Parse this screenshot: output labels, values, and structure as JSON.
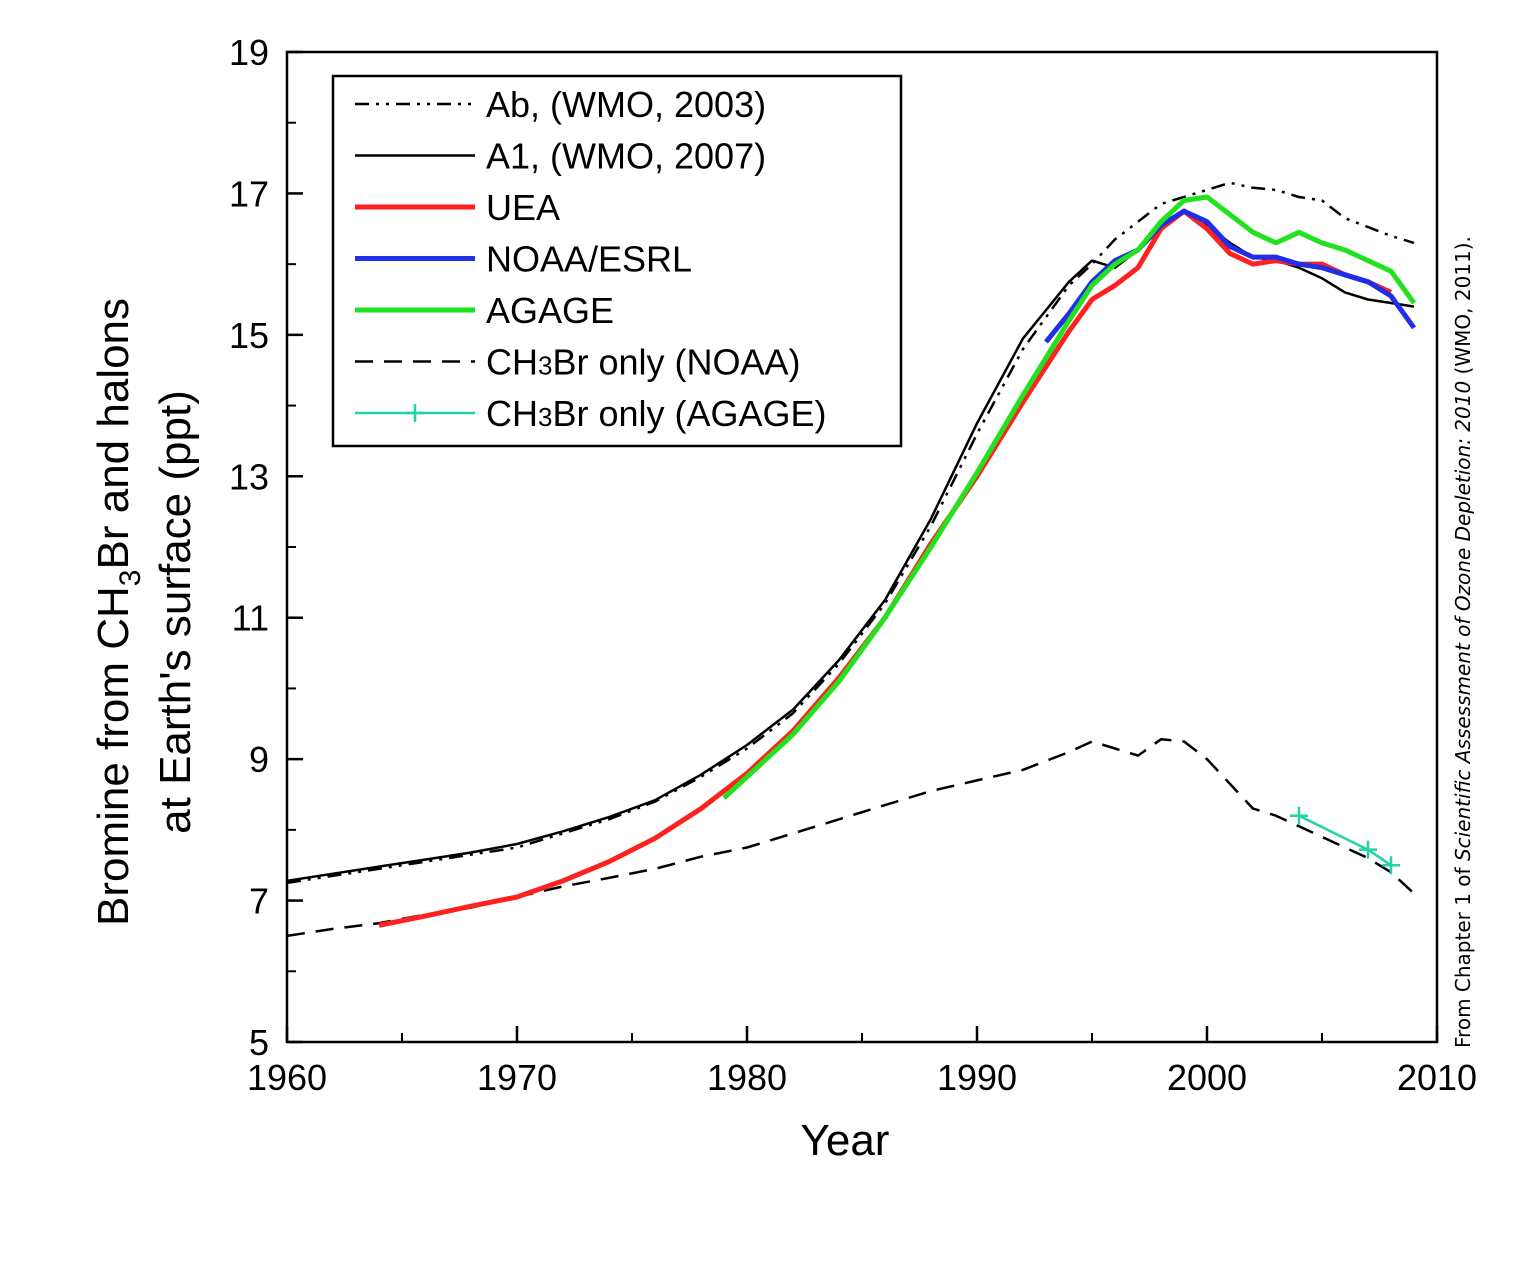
{
  "chart_data": {
    "type": "line",
    "xlabel": "Year",
    "ylabel_line1_prefix": "Bromine from CH",
    "ylabel_line1_sub": "3",
    "ylabel_line1_suffix": "Br and halons",
    "ylabel_line2": "at Earth's surface (ppt)",
    "xlim": [
      1960,
      2010
    ],
    "ylim": [
      5,
      19
    ],
    "xticks": [
      1960,
      1970,
      1980,
      1990,
      2000,
      2010
    ],
    "xticks_minor": [
      1965,
      1975,
      1985,
      1995,
      2005
    ],
    "yticks": [
      5,
      7,
      9,
      11,
      13,
      15,
      17,
      19
    ],
    "yticks_minor": [
      6,
      8,
      10,
      12,
      14,
      16,
      18
    ],
    "grid": false,
    "legend_position": "top-left",
    "credit": {
      "prefix": "From Chapter 1 of ",
      "italic": "Scientific Assessment of Ozone Depletion: 2010",
      "suffix": " (WMO, 2011)."
    },
    "series": [
      {
        "name": "Ab, (WMO, 2003)",
        "legend_prefix": "Ab, (WMO, 2003)",
        "legend_sub": "",
        "legend_suffix": "",
        "color": "#000000",
        "style": "dashdotdot",
        "width": 2.5,
        "x": [
          1960,
          1962,
          1964,
          1966,
          1968,
          1970,
          1972,
          1974,
          1976,
          1978,
          1980,
          1982,
          1984,
          1986,
          1988,
          1990,
          1992,
          1994,
          1995,
          1996,
          1998,
          2000,
          2001,
          2002,
          2003,
          2004,
          2005,
          2006,
          2008,
          2009
        ],
        "y": [
          7.25,
          7.35,
          7.45,
          7.55,
          7.65,
          7.75,
          7.95,
          8.15,
          8.4,
          8.75,
          9.15,
          9.65,
          10.35,
          11.2,
          12.3,
          13.6,
          14.8,
          15.7,
          16.0,
          16.35,
          16.85,
          17.05,
          17.15,
          17.08,
          17.05,
          16.95,
          16.9,
          16.65,
          16.4,
          16.3
        ]
      },
      {
        "name": "A1, (WMO, 2007)",
        "legend_prefix": "A1, (WMO, 2007)",
        "legend_sub": "",
        "legend_suffix": "",
        "color": "#000000",
        "style": "solid",
        "width": 2.5,
        "x": [
          1960,
          1962,
          1964,
          1966,
          1968,
          1970,
          1972,
          1974,
          1976,
          1978,
          1980,
          1982,
          1984,
          1986,
          1988,
          1990,
          1992,
          1994,
          1995,
          1996,
          1997,
          1998,
          1999,
          2000,
          2001,
          2002,
          2003,
          2004,
          2005,
          2006,
          2007,
          2008,
          2009
        ],
        "y": [
          7.28,
          7.38,
          7.48,
          7.58,
          7.68,
          7.8,
          7.98,
          8.18,
          8.42,
          8.78,
          9.2,
          9.7,
          10.4,
          11.25,
          12.4,
          13.75,
          14.95,
          15.75,
          16.05,
          15.95,
          16.2,
          16.5,
          16.75,
          16.55,
          16.3,
          16.1,
          16.05,
          15.95,
          15.8,
          15.6,
          15.5,
          15.45,
          15.4
        ]
      },
      {
        "name": "UEA",
        "legend_prefix": "UEA",
        "legend_sub": "",
        "legend_suffix": "",
        "color": "#ff2020",
        "style": "solid",
        "width": 5,
        "x": [
          1964,
          1966,
          1968,
          1970,
          1972,
          1974,
          1976,
          1978,
          1980,
          1982,
          1984,
          1986,
          1988,
          1990,
          1992,
          1994,
          1995,
          1996,
          1997,
          1998,
          1999,
          2000,
          2001,
          2002,
          2003,
          2004,
          2005,
          2006,
          2007,
          2008
        ],
        "y": [
          6.65,
          6.78,
          6.92,
          7.05,
          7.28,
          7.55,
          7.88,
          8.3,
          8.8,
          9.4,
          10.15,
          11.0,
          12.05,
          13.0,
          14.05,
          15.05,
          15.5,
          15.7,
          15.95,
          16.5,
          16.75,
          16.5,
          16.15,
          16.0,
          16.05,
          16.0,
          16.0,
          15.85,
          15.75,
          15.6
        ]
      },
      {
        "name": "NOAA/ESRL",
        "legend_prefix": "NOAA/ESRL",
        "legend_sub": "",
        "legend_suffix": "",
        "color": "#1f2ee8",
        "style": "solid",
        "width": 5,
        "x": [
          1993,
          1994,
          1995,
          1996,
          1997,
          1998,
          1999,
          2000,
          2001,
          2002,
          2003,
          2004,
          2005,
          2006,
          2007,
          2008,
          2009
        ],
        "y": [
          14.9,
          15.3,
          15.75,
          16.05,
          16.2,
          16.55,
          16.75,
          16.6,
          16.25,
          16.1,
          16.1,
          16.0,
          15.95,
          15.85,
          15.75,
          15.55,
          15.1
        ]
      },
      {
        "name": "AGAGE",
        "legend_prefix": "AGAGE",
        "legend_sub": "",
        "legend_suffix": "",
        "color": "#22e11f",
        "style": "solid",
        "width": 5,
        "x": [
          1979,
          1980,
          1982,
          1984,
          1986,
          1988,
          1990,
          1992,
          1994,
          1995,
          1996,
          1997,
          1998,
          1999,
          2000,
          2001,
          2002,
          2003,
          2004,
          2005,
          2006,
          2007,
          2008,
          2009
        ],
        "y": [
          8.45,
          8.75,
          9.35,
          10.1,
          11.0,
          12.0,
          13.05,
          14.15,
          15.2,
          15.7,
          16.0,
          16.2,
          16.6,
          16.9,
          16.95,
          16.7,
          16.45,
          16.3,
          16.45,
          16.3,
          16.2,
          16.05,
          15.9,
          15.45
        ]
      },
      {
        "name": "CH3Br only (NOAA)",
        "legend_prefix": "CH",
        "legend_sub": "3",
        "legend_suffix": "Br only (NOAA)",
        "color": "#000000",
        "style": "dashed",
        "width": 2.5,
        "x": [
          1960,
          1962,
          1964,
          1966,
          1968,
          1970,
          1972,
          1974,
          1976,
          1978,
          1980,
          1982,
          1984,
          1986,
          1988,
          1990,
          1992,
          1994,
          1995,
          1996,
          1997,
          1998,
          1999,
          2000,
          2001,
          2002,
          2003,
          2004,
          2005,
          2006,
          2007,
          2008,
          2009
        ],
        "y": [
          6.5,
          6.6,
          6.68,
          6.8,
          6.9,
          7.05,
          7.2,
          7.32,
          7.45,
          7.62,
          7.75,
          7.95,
          8.15,
          8.35,
          8.55,
          8.7,
          8.85,
          9.1,
          9.25,
          9.15,
          9.05,
          9.28,
          9.25,
          9.0,
          8.65,
          8.3,
          8.2,
          8.05,
          7.9,
          7.75,
          7.6,
          7.4,
          7.1
        ]
      },
      {
        "name": "CH3Br only (AGAGE)",
        "legend_prefix": "CH",
        "legend_sub": "3",
        "legend_suffix": "Br only (AGAGE)",
        "color": "#22d4a5",
        "style": "solid-plus",
        "width": 2.5,
        "x": [
          2004,
          2007,
          2008
        ],
        "y": [
          8.2,
          7.72,
          7.5
        ]
      }
    ]
  }
}
